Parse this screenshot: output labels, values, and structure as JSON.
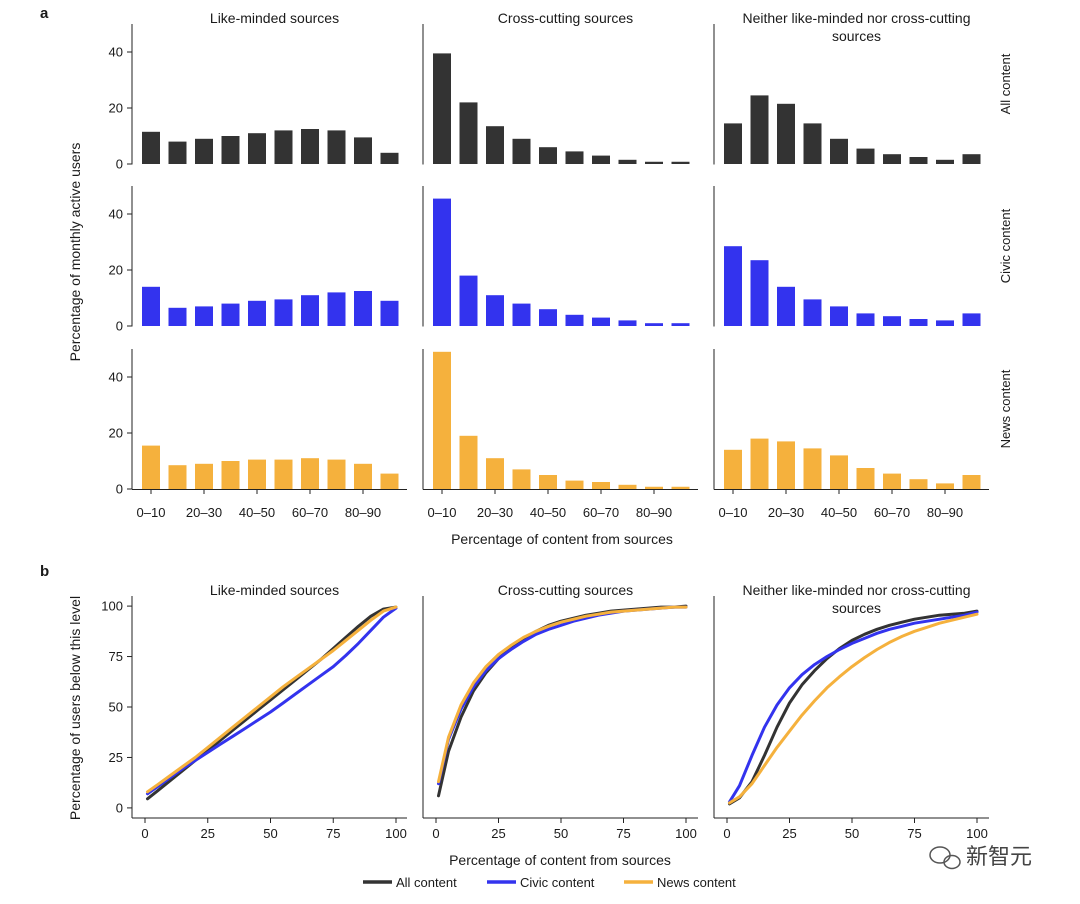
{
  "figure": {
    "panel_a_letter": "a",
    "panel_b_letter": "b",
    "col_titles": [
      "Like-minded sources",
      "Cross-cutting sources",
      "Neither like-minded nor cross-cutting sources"
    ],
    "col_title_lines": [
      [
        "Like-minded sources"
      ],
      [
        "Cross-cutting sources"
      ],
      [
        "Neither like-minded nor cross-cutting",
        "sources"
      ]
    ],
    "row_labels": [
      "All content",
      "Civic content",
      "News content"
    ],
    "a_ylabel": "Percentage of monthly active users",
    "a_xlabel": "Percentage of content from sources",
    "b_ylabel": "Percentage of users below this level",
    "b_xlabel": "Percentage of content from sources",
    "colors": {
      "all": "#333333",
      "civic": "#3333ee",
      "news": "#f5b13d"
    },
    "watermark": "新智元"
  },
  "chart_data": [
    {
      "type": "bar",
      "panel": "a",
      "categories": [
        "0–10",
        "10–20",
        "20–30",
        "30–40",
        "40–50",
        "50–60",
        "60–70",
        "70–80",
        "80–90",
        "90–100"
      ],
      "tick_labels": [
        "0–10",
        "20–30",
        "40–50",
        "60–70",
        "80–90"
      ],
      "yticks": [
        0,
        20,
        40
      ],
      "ylim": [
        0,
        50
      ],
      "rows": [
        "All content",
        "Civic content",
        "News content"
      ],
      "columns": [
        "Like-minded sources",
        "Cross-cutting sources",
        "Neither like-minded nor cross-cutting sources"
      ],
      "xlabel": "Percentage of content from sources",
      "ylabel": "Percentage of monthly active users",
      "values": [
        [
          [
            11.5,
            8,
            9,
            10,
            11,
            12,
            12.5,
            12,
            9.5,
            4
          ],
          [
            39.5,
            22,
            13.5,
            9,
            6,
            4.5,
            3,
            1.5,
            0.8,
            0.8
          ],
          [
            14.5,
            24.5,
            21.5,
            14.5,
            9,
            5.5,
            3.5,
            2.5,
            1.5,
            3.5
          ]
        ],
        [
          [
            14,
            6.5,
            7,
            8,
            9,
            9.5,
            11,
            12,
            12.5,
            9
          ],
          [
            45.5,
            18,
            11,
            8,
            6,
            4,
            3,
            2,
            1,
            1
          ],
          [
            28.5,
            23.5,
            14,
            9.5,
            7,
            4.5,
            3.5,
            2.5,
            2,
            4.5
          ]
        ],
        [
          [
            15.5,
            8.5,
            9,
            10,
            10.5,
            10.5,
            11,
            10.5,
            9,
            5.5
          ],
          [
            49,
            19,
            11,
            7,
            5,
            3,
            2.5,
            1.5,
            0.8,
            0.8
          ],
          [
            14,
            18,
            17,
            14.5,
            12,
            7.5,
            5.5,
            3.5,
            2,
            5
          ]
        ]
      ]
    },
    {
      "type": "line",
      "panel": "b",
      "columns": [
        "Like-minded sources",
        "Cross-cutting sources",
        "Neither like-minded nor cross-cutting sources"
      ],
      "xticks": [
        0,
        25,
        50,
        75,
        100
      ],
      "yticks": [
        0,
        25,
        50,
        75,
        100
      ],
      "xlim": [
        -5,
        105
      ],
      "ylim": [
        -5,
        105
      ],
      "xlabel": "Percentage of content from sources",
      "ylabel": "Percentage of users below this level",
      "x": [
        1,
        5,
        10,
        15,
        20,
        25,
        30,
        35,
        40,
        45,
        50,
        55,
        60,
        65,
        70,
        75,
        80,
        85,
        90,
        95,
        100
      ],
      "series_order": [
        "all",
        "civic",
        "news"
      ],
      "series": [
        {
          "name": "All content",
          "key": "all",
          "values": [
            [
              4.5,
              8.5,
              13.5,
              18.5,
              23.5,
              28.5,
              33.5,
              38.5,
              43.5,
              48.5,
              53.5,
              58.5,
              63.5,
              68.5,
              73.5,
              79,
              84.5,
              90,
              95,
              98.5,
              99.5
            ],
            [
              6,
              28,
              45,
              58,
              67,
              74,
              79.5,
              84,
              87.5,
              90.5,
              92.5,
              94,
              95.5,
              96.5,
              97.5,
              98,
              98.5,
              99,
              99.5,
              99.5,
              100
            ],
            [
              2,
              5,
              13,
              26,
              40,
              52,
              61,
              68,
              74,
              79,
              83,
              86,
              88.5,
              90.5,
              92,
              93.5,
              94.5,
              95.5,
              96,
              96.5,
              97.5
            ]
          ]
        },
        {
          "name": "Civic content",
          "key": "civic",
          "values": [
            [
              7,
              10.5,
              15,
              19.5,
              23.5,
              27.5,
              31.5,
              35.5,
              39.5,
              43.5,
              47.5,
              52,
              56.5,
              61,
              65.5,
              70,
              75.5,
              81.5,
              88,
              94.5,
              99
            ],
            [
              12,
              34,
              49,
              60,
              68,
              74,
              78.5,
              82.5,
              86,
              88.5,
              90.5,
              92.5,
              94,
              95.5,
              96.5,
              97.5,
              98,
              98.5,
              99,
              99.5,
              99.5
            ],
            [
              3,
              11,
              26,
              40,
              51,
              59.5,
              66,
              71,
              75,
              78.5,
              81.5,
              84,
              86.5,
              88.5,
              90,
              91.5,
              92.5,
              93.5,
              94.5,
              95.5,
              97
            ]
          ]
        },
        {
          "name": "News content",
          "key": "news",
          "values": [
            [
              8,
              11.5,
              16,
              20.5,
              25,
              30,
              35,
              40,
              45,
              50,
              55,
              60,
              64.5,
              69,
              73.5,
              78,
              83,
              88,
              93,
              97.5,
              99.5
            ],
            [
              13,
              35,
              51,
              62,
              70,
              76,
              80.5,
              84.5,
              87.5,
              90,
              92,
              93.5,
              95,
              96,
              97,
              97.5,
              98,
              98.5,
              99,
              99.5,
              99.5
            ],
            [
              2.5,
              5.5,
              12,
              21,
              30,
              38,
              46,
              53,
              59.5,
              65,
              70,
              74.5,
              78.5,
              82,
              85,
              87.5,
              89.5,
              91.5,
              93,
              94.5,
              96
            ]
          ]
        }
      ],
      "legend": [
        {
          "key": "all",
          "label": "All content"
        },
        {
          "key": "civic",
          "label": "Civic content"
        },
        {
          "key": "news",
          "label": "News content"
        }
      ],
      "legend_position": "bottom-center"
    }
  ]
}
